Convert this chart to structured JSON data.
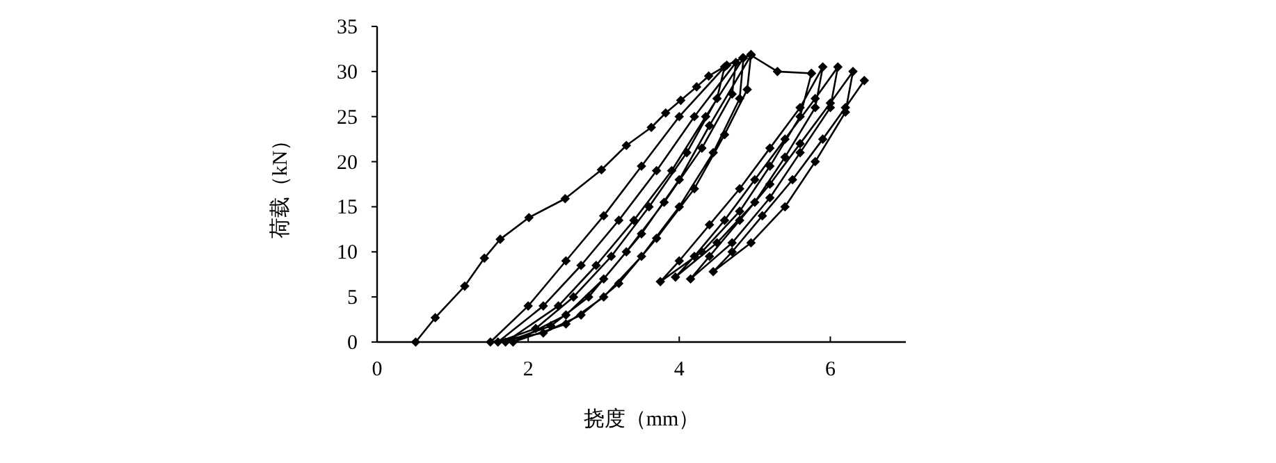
{
  "chart_data": {
    "type": "line",
    "xlabel": "挠度（mm）",
    "ylabel": "荷载（kN）",
    "xlim": [
      0,
      7
    ],
    "ylim": [
      0,
      35
    ],
    "xticks": [
      0,
      2,
      4,
      6
    ],
    "yticks": [
      0,
      5,
      10,
      15,
      20,
      25,
      30,
      35
    ],
    "grid": false,
    "marker": "diamond",
    "line_style": "solid",
    "series": [
      {
        "color": "#000000",
        "x": [
          0.51,
          0.77,
          1.16,
          1.42,
          1.63,
          2.01,
          2.49,
          2.97,
          3.3,
          3.63,
          3.82,
          4.02,
          4.23,
          4.39,
          4.63,
          4.84,
          4.95,
          4.9,
          4.6,
          4.2,
          3.7,
          3.2,
          2.7,
          2.2,
          1.5,
          2.0,
          2.5,
          3.0,
          3.5,
          4.0,
          4.6,
          4.5,
          4.1,
          3.6,
          3.1,
          2.6,
          2.1,
          1.6,
          2.2,
          2.7,
          3.2,
          3.7,
          4.2,
          4.75,
          4.7,
          4.3,
          3.8,
          3.3,
          2.8,
          2.3,
          1.7,
          2.4,
          2.9,
          3.4,
          3.9,
          4.35,
          4.85,
          4.8,
          4.45,
          4.0,
          3.5,
          3.0,
          2.5,
          1.8,
          2.5,
          3.0,
          3.5,
          4.0,
          4.4,
          4.95,
          5.3,
          5.75
        ],
        "values": [
          0,
          2.7,
          6.2,
          9.3,
          11.4,
          13.8,
          15.9,
          19.1,
          21.8,
          23.8,
          25.4,
          26.8,
          28.3,
          29.5,
          30.7,
          31.5,
          31.9,
          28,
          23,
          17,
          11.5,
          6.5,
          3,
          1,
          0,
          4,
          9,
          14,
          19.5,
          25,
          30.5,
          27,
          21,
          15,
          9.5,
          5,
          1.5,
          0,
          4,
          8.5,
          13.5,
          19,
          25,
          31,
          27.5,
          21.5,
          15.5,
          10,
          5,
          1.8,
          0,
          4,
          8.5,
          13.5,
          19,
          25,
          31.5,
          27,
          21,
          15,
          9.5,
          5,
          2,
          0,
          3,
          7,
          12,
          18,
          24,
          31.8,
          30,
          29.8
        ]
      },
      {
        "color": "#000000",
        "x": [
          5.75,
          5.6,
          5.2,
          4.8,
          4.3,
          3.75,
          4.0,
          4.4,
          4.8,
          5.2,
          5.6,
          5.9,
          5.8,
          5.4,
          5.0,
          4.5,
          3.95,
          4.2,
          4.6,
          5.0,
          5.4,
          5.8,
          6.1,
          6.0,
          5.6,
          5.2,
          4.7,
          4.15,
          4.4,
          4.8,
          5.2,
          5.6,
          6.0,
          6.3,
          6.2,
          5.8,
          5.4,
          4.95,
          4.45,
          4.7,
          5.1,
          5.5,
          5.9,
          6.2,
          6.45
        ],
        "values": [
          29.8,
          25,
          19.5,
          14.5,
          10,
          6.7,
          9,
          13,
          17,
          21.5,
          26,
          30.5,
          26,
          20.5,
          15.5,
          11,
          7.2,
          9.5,
          13.5,
          18,
          22.5,
          27,
          30.5,
          26,
          21,
          16,
          11,
          7,
          9.5,
          13.5,
          17.5,
          22,
          26.5,
          30,
          25.5,
          20,
          15,
          11,
          7.8,
          10,
          14,
          18,
          22.5,
          26,
          29
        ]
      }
    ]
  }
}
